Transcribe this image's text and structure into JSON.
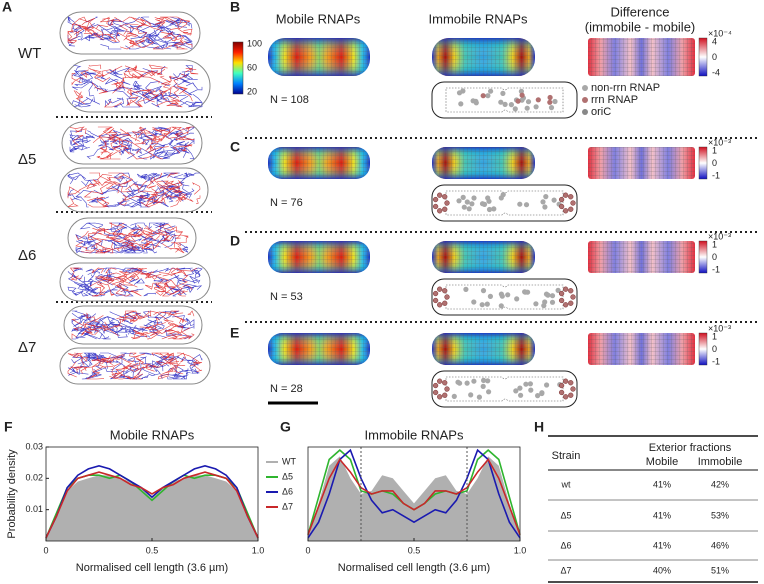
{
  "panel_labels": [
    "A",
    "B",
    "C",
    "D",
    "E",
    "F",
    "G",
    "H"
  ],
  "panel_a": {
    "strains": [
      "WT",
      "Δ5",
      "Δ6",
      "Δ7"
    ]
  },
  "panel_b": {
    "columns": [
      "Mobile RNAPs",
      "Immobile RNAPs",
      "Difference"
    ],
    "difference_subtitle": "(immobile - mobile)",
    "colorbar_ticks": [
      100,
      60,
      20
    ],
    "legend": [
      "non-rrn RNAP",
      "rrn RNAP",
      "oriC"
    ],
    "rows": [
      {
        "n": "N = 108",
        "diff_scale": "×10⁻⁴",
        "diff_ticks": [
          4,
          0,
          -4
        ]
      },
      {
        "n": "N = 76",
        "diff_scale": "×10⁻³",
        "diff_ticks": [
          1,
          0,
          -1
        ]
      },
      {
        "n": "N = 53",
        "diff_scale": "×10⁻³",
        "diff_ticks": [
          1,
          0,
          -1
        ]
      },
      {
        "n": "N = 28",
        "diff_scale": "×10⁻³",
        "diff_ticks": [
          1,
          0,
          -1
        ]
      }
    ]
  },
  "chart_data": [
    {
      "type": "line",
      "title": "Mobile RNAPs",
      "xlabel": "Normalised cell length (3.6 µm)",
      "ylabel": "Probability density",
      "x": [
        0,
        0.05,
        0.1,
        0.15,
        0.2,
        0.25,
        0.3,
        0.35,
        0.4,
        0.45,
        0.5,
        0.55,
        0.6,
        0.65,
        0.7,
        0.75,
        0.8,
        0.85,
        0.9,
        0.95,
        1
      ],
      "xlim": [
        0,
        1
      ],
      "ylim": [
        0,
        0.03
      ],
      "xticks": [
        0,
        0.5,
        {
          "value": 1,
          "label": "1.0"
        }
      ],
      "yticks": [
        0.01,
        0.02,
        0.03
      ],
      "legend": "right",
      "series": [
        {
          "name": "WT",
          "color": "#b0b0b0",
          "area": true,
          "values": [
            0.001,
            0.008,
            0.016,
            0.019,
            0.02,
            0.021,
            0.021,
            0.02,
            0.019,
            0.017,
            0.014,
            0.017,
            0.019,
            0.02,
            0.021,
            0.021,
            0.02,
            0.019,
            0.016,
            0.008,
            0.001
          ]
        },
        {
          "name": "Δ5",
          "color": "#2fb52f",
          "values": [
            0.001,
            0.009,
            0.017,
            0.02,
            0.021,
            0.021,
            0.02,
            0.021,
            0.019,
            0.016,
            0.013,
            0.016,
            0.019,
            0.021,
            0.02,
            0.021,
            0.021,
            0.02,
            0.017,
            0.009,
            0.001
          ]
        },
        {
          "name": "Δ6",
          "color": "#1a1ab0",
          "values": [
            0.001,
            0.008,
            0.017,
            0.021,
            0.023,
            0.024,
            0.023,
            0.021,
            0.019,
            0.017,
            0.014,
            0.017,
            0.019,
            0.021,
            0.023,
            0.024,
            0.023,
            0.021,
            0.017,
            0.008,
            0.001
          ]
        },
        {
          "name": "Δ7",
          "color": "#c8282a",
          "values": [
            0.001,
            0.008,
            0.016,
            0.02,
            0.021,
            0.022,
            0.021,
            0.02,
            0.018,
            0.017,
            0.015,
            0.017,
            0.018,
            0.02,
            0.021,
            0.022,
            0.021,
            0.02,
            0.016,
            0.008,
            0.001
          ]
        }
      ]
    },
    {
      "type": "line",
      "title": "Immobile RNAPs",
      "xlabel": "Normalised cell length (3.6 µm)",
      "x": [
        0,
        0.05,
        0.1,
        0.15,
        0.2,
        0.25,
        0.3,
        0.35,
        0.4,
        0.45,
        0.5,
        0.55,
        0.6,
        0.65,
        0.7,
        0.75,
        0.8,
        0.85,
        0.9,
        0.95,
        1
      ],
      "xlim": [
        0,
        1
      ],
      "ylim": [
        0,
        0.03
      ],
      "xticks": [
        0,
        0.5,
        {
          "value": 1,
          "label": "1.0"
        }
      ],
      "vlines": [
        0.25,
        0.75
      ],
      "series": [
        {
          "name": "WT",
          "color": "#b0b0b0",
          "area": true,
          "values": [
            0.002,
            0.012,
            0.024,
            0.027,
            0.02,
            0.015,
            0.016,
            0.021,
            0.02,
            0.016,
            0.012,
            0.016,
            0.02,
            0.021,
            0.016,
            0.015,
            0.02,
            0.027,
            0.024,
            0.012,
            0.002
          ]
        },
        {
          "name": "Δ5",
          "color": "#2fb52f",
          "values": [
            0.002,
            0.014,
            0.026,
            0.029,
            0.026,
            0.016,
            0.015,
            0.016,
            0.015,
            0.012,
            0.01,
            0.012,
            0.015,
            0.016,
            0.015,
            0.016,
            0.026,
            0.029,
            0.026,
            0.014,
            0.002
          ]
        },
        {
          "name": "Δ6",
          "color": "#1a1ab0",
          "values": [
            0.001,
            0.006,
            0.015,
            0.026,
            0.029,
            0.02,
            0.013,
            0.009,
            0.01,
            0.008,
            0.006,
            0.008,
            0.01,
            0.009,
            0.013,
            0.02,
            0.029,
            0.026,
            0.015,
            0.006,
            0.001
          ]
        },
        {
          "name": "Δ7",
          "color": "#c8282a",
          "values": [
            0.002,
            0.011,
            0.02,
            0.026,
            0.022,
            0.017,
            0.015,
            0.016,
            0.016,
            0.012,
            0.01,
            0.012,
            0.016,
            0.016,
            0.015,
            0.017,
            0.022,
            0.026,
            0.02,
            0.011,
            0.002
          ]
        }
      ]
    }
  ],
  "table": {
    "header": [
      "Strain",
      "Exterior fractions",
      "Mobile",
      "Immobile"
    ],
    "rows": [
      [
        "wt",
        "41%",
        "42%"
      ],
      [
        "Δ5",
        "41%",
        "53%"
      ],
      [
        "Δ6",
        "41%",
        "46%"
      ],
      [
        "Δ7",
        "40%",
        "51%"
      ]
    ]
  }
}
